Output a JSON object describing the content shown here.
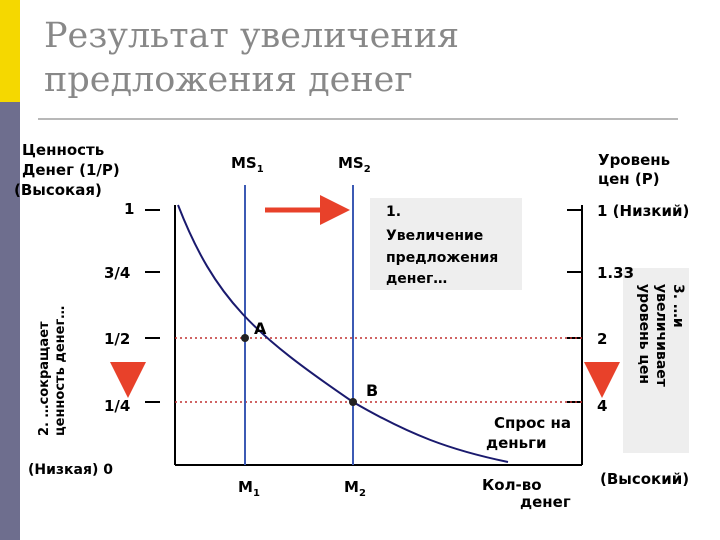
{
  "slide": {
    "title": "Результат увеличения предложения денег",
    "accent_colors": {
      "sidebar": "#6e6e8e",
      "stripe": "#f5d800",
      "arrow": "#e8412a",
      "money_line": "#3c5ab4",
      "demand_curve": "#1a1a6e",
      "dotted": "#c03030"
    }
  },
  "left_axis": {
    "title_lines": [
      "Ценность",
      "Денег (1/P)",
      "(Высокая)"
    ],
    "ticks": [
      "1",
      "3/4",
      "1/2",
      "1/4"
    ],
    "zero_label": "(Низкая) 0",
    "rotated_note_lines": [
      "2. …сокращает",
      "ценность денег…"
    ]
  },
  "right_axis": {
    "title_lines": [
      "Уровень",
      "цен (P)"
    ],
    "ticks": [
      "1 (Низкий)",
      "1.33",
      "2",
      "4"
    ],
    "bottom_label": "(Высокий)",
    "rotated_note_lines": [
      "3. …и",
      "увеличивает",
      "уровень цен"
    ]
  },
  "supply": {
    "ms1_label": "MS",
    "ms1_sub": "1",
    "ms2_label": "MS",
    "ms2_sub": "2",
    "m1_label": "M",
    "m1_sub": "1",
    "m2_label": "M",
    "m2_sub": "2"
  },
  "annotations": {
    "increase_note_lines": [
      "1.",
      "Увеличение",
      "предложения",
      "денег…"
    ],
    "point_a": "A",
    "point_b": "B",
    "demand_lines": [
      "Спрос на",
      "деньги"
    ],
    "x_axis_lines": [
      "Кол-во",
      "денег"
    ]
  }
}
